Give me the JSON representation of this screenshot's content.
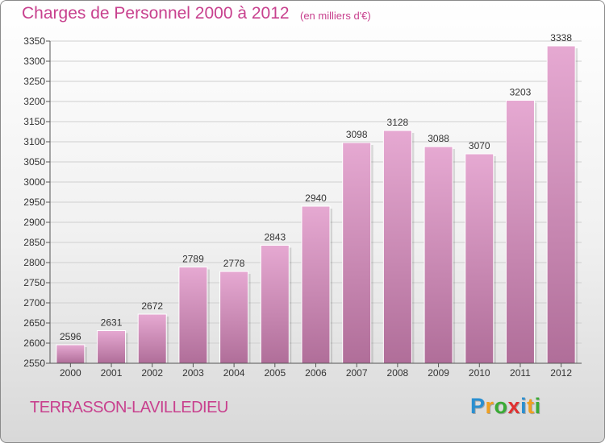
{
  "title": "Charges de Personnel 2000 à 2012",
  "unit_note": "(en milliers d'€)",
  "commune": "TERRASSON-LAVILLEDIEU",
  "logo": {
    "letters": [
      "P",
      "r",
      "o",
      "x",
      "i",
      "t",
      "i"
    ],
    "colors": [
      "#2a8fd0",
      "#f0a020",
      "#3aaa35",
      "#e03030",
      "#2a8fd0",
      "#f0a020",
      "#3aaa35"
    ]
  },
  "colors": {
    "accent": "#c8418e",
    "bar_top": "#e6a9d2",
    "bar_bottom": "#b06e99",
    "grid": "#cfcfcf"
  },
  "chart_data": {
    "type": "bar",
    "categories": [
      "2000",
      "2001",
      "2002",
      "2003",
      "2004",
      "2005",
      "2006",
      "2007",
      "2008",
      "2009",
      "2010",
      "2011",
      "2012"
    ],
    "values": [
      2596,
      2631,
      2672,
      2789,
      2778,
      2843,
      2940,
      3098,
      3128,
      3088,
      3070,
      3203,
      3338
    ],
    "ylim": [
      2550,
      3350
    ],
    "yticks": [
      2550,
      2600,
      2650,
      2700,
      2750,
      2800,
      2850,
      2900,
      2950,
      3000,
      3050,
      3100,
      3150,
      3200,
      3250,
      3300,
      3350
    ],
    "grid": true,
    "data_labels": true
  }
}
